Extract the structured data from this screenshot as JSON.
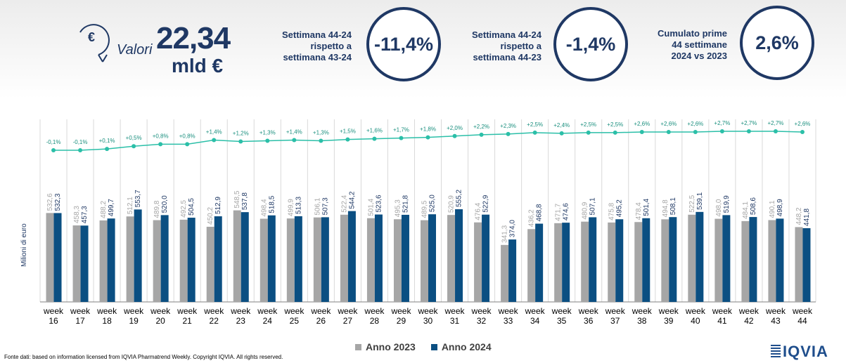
{
  "header": {
    "valori_label": "Valori",
    "valori_value": "22,34",
    "valori_unit": "mld €",
    "kpis": [
      {
        "lines": [
          "Settimana 44-24",
          "rispetto a",
          "settimana 43-24"
        ],
        "value": "-11,4%"
      },
      {
        "lines": [
          "Settimana 44-24",
          "rispetto a",
          "settimana 44-23"
        ],
        "value": "-1,4%"
      },
      {
        "lines": [
          "Cumulato prime",
          "44 settimane",
          "2024 vs 2023"
        ],
        "value": "2,6%"
      }
    ]
  },
  "chart_data": {
    "type": "bar",
    "ylabel": "Milioni di euro",
    "categories": [
      "week\n16",
      "week\n17",
      "week\n18",
      "week\n19",
      "week\n20",
      "week\n21",
      "week\n22",
      "week\n23",
      "week\n24",
      "week\n25",
      "week\n26",
      "week\n27",
      "week\n28",
      "week\n29",
      "week\n30",
      "week\n31",
      "week\n32",
      "week\n33",
      "week\n34",
      "week\n35",
      "week\n36",
      "week\n37",
      "week\n38",
      "week\n39",
      "week\n40",
      "week\n41",
      "week\n42",
      "week\n43",
      "week\n44"
    ],
    "series": [
      {
        "name": "Anno 2023",
        "color": "#a6a6a6",
        "values": [
          532.6,
          458.3,
          488.2,
          512.1,
          489.8,
          492.5,
          450.2,
          548.5,
          498.4,
          499.9,
          506.1,
          522.4,
          501.4,
          495.3,
          489.5,
          520.9,
          476.4,
          341.3,
          436.2,
          471.7,
          480.9,
          475.8,
          478.4,
          494.8,
          522.5,
          498.0,
          484.1,
          490.1,
          448.2
        ],
        "labels": [
          "532,6",
          "458,3",
          "488,2",
          "512,1",
          "489,8",
          "492,5",
          "450,2",
          "548,5",
          "498,4",
          "499,9",
          "506,1",
          "522,4",
          "501,4",
          "495,3",
          "489,5",
          "520,9",
          "476,4",
          "341,3",
          "436,2",
          "471,7",
          "480,9",
          "475,8",
          "478,4",
          "494,8",
          "522,5",
          "498,0",
          "484,1",
          "490,1",
          "448,2"
        ]
      },
      {
        "name": "Anno 2024",
        "color": "#0b4f82",
        "values": [
          532.3,
          457.3,
          499.7,
          553.7,
          520.0,
          504.5,
          512.9,
          537.8,
          518.5,
          513.3,
          507.3,
          544.2,
          523.6,
          521.8,
          525.0,
          555.2,
          522.9,
          374.0,
          468.8,
          474.6,
          507.1,
          495.2,
          501.4,
          508.1,
          539.1,
          519.9,
          508.6,
          498.9,
          441.8
        ],
        "labels": [
          "532,3",
          "457,3",
          "499,7",
          "553,7",
          "520,0",
          "504,5",
          "512,9",
          "537,8",
          "518,5",
          "513,3",
          "507,3",
          "544,2",
          "523,6",
          "521,8",
          "525,0",
          "555,2",
          "522,9",
          "374,0",
          "468,8",
          "474,6",
          "507,1",
          "495,2",
          "501,4",
          "508,1",
          "539,1",
          "519,9",
          "508,6",
          "498,9",
          "441,8"
        ]
      }
    ],
    "cumulative_growth": {
      "color": "#2bbfa8",
      "values": [
        -0.1,
        -0.1,
        0.1,
        0.5,
        0.8,
        0.8,
        1.4,
        1.2,
        1.3,
        1.4,
        1.3,
        1.5,
        1.6,
        1.7,
        1.8,
        2.0,
        2.2,
        2.3,
        2.5,
        2.4,
        2.5,
        2.5,
        2.6,
        2.6,
        2.6,
        2.7,
        2.7,
        2.7,
        2.6
      ],
      "labels": [
        "-0,1%",
        "-0,1%",
        "+0,1%",
        "+0,5%",
        "+0,8%",
        "+0,8%",
        "+1,4%",
        "+1,2%",
        "+1,3%",
        "+1,4%",
        "+1,3%",
        "+1,5%",
        "+1,6%",
        "+1,7%",
        "+1,8%",
        "+2,0%",
        "+2,2%",
        "+2,3%",
        "+2,5%",
        "+2,4%",
        "+2,5%",
        "+2,5%",
        "+2,6%",
        "+2,6%",
        "+2,6%",
        "+2,7%",
        "+2,7%",
        "+2,7%",
        "+2,6%"
      ]
    },
    "ylim": [
      0,
      600
    ],
    "legend": "bottom"
  },
  "footer": {
    "source": "Fonte dati: based on information licensed from IQVIA Pharmatrend Weekly. Copyright IQVIA. All rights reserved.",
    "logo": "IQVIA"
  }
}
